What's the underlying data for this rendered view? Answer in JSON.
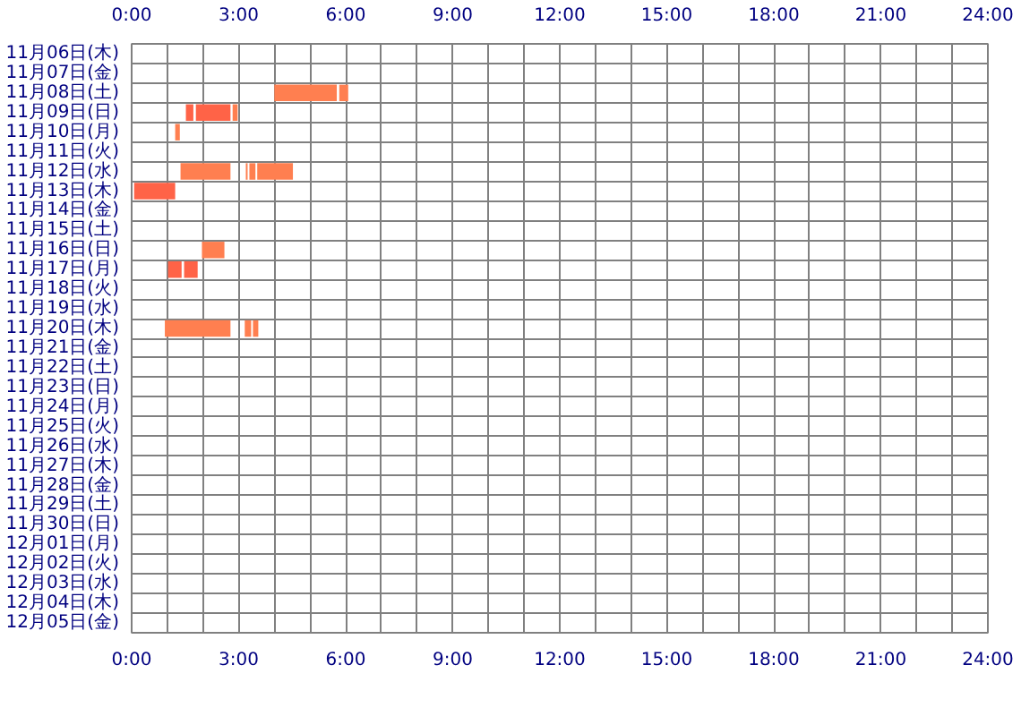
{
  "chart_data": {
    "type": "bar",
    "orientation": "horizontal",
    "categories": [
      "11月06日(木)",
      "11月07日(金)",
      "11月08日(土)",
      "11月09日(日)",
      "11月10日(月)",
      "11月11日(火)",
      "11月12日(水)",
      "11月13日(木)",
      "11月14日(金)",
      "11月15日(土)",
      "11月16日(日)",
      "11月17日(月)",
      "11月18日(火)",
      "11月19日(水)",
      "11月20日(木)",
      "11月21日(金)",
      "11月22日(土)",
      "11月23日(日)",
      "11月24日(月)",
      "11月25日(火)",
      "11月26日(水)",
      "11月27日(木)",
      "11月28日(金)",
      "11月29日(土)",
      "11月30日(日)",
      "12月01日(月)",
      "12月02日(火)",
      "12月03日(水)",
      "12月04日(木)",
      "12月05日(金)"
    ],
    "series": [
      {
        "base": [
          null,
          null,
          4.0,
          1.52,
          1.22,
          null,
          1.37,
          0.07,
          null,
          null,
          1.97,
          1.02,
          null,
          null,
          0.93,
          null,
          null,
          null,
          null,
          null,
          null,
          null,
          null,
          null,
          null,
          null,
          null,
          null,
          null,
          null
        ],
        "values": [
          null,
          null,
          1.75,
          0.21,
          0.13,
          null,
          1.4,
          1.15,
          null,
          null,
          0.63,
          0.38,
          null,
          null,
          1.84,
          null,
          null,
          null,
          null,
          null,
          null,
          null,
          null,
          null,
          null,
          null,
          null,
          null,
          null,
          null
        ],
        "colors": [
          null,
          null,
          "#ff7f50",
          "#ff6347",
          "#ff7f50",
          null,
          "#ff7f50",
          "#ff6347",
          null,
          null,
          "#ff7f50",
          "#ff6347",
          null,
          null,
          "#ff7f50",
          null,
          null,
          null,
          null,
          null,
          null,
          null,
          null,
          null,
          null,
          null,
          null,
          null,
          null,
          null
        ]
      },
      {
        "base": [
          null,
          null,
          5.82,
          1.8,
          null,
          null,
          3.2,
          null,
          null,
          null,
          null,
          1.47,
          null,
          null,
          3.17,
          null,
          null,
          null,
          null,
          null,
          null,
          null,
          null,
          null,
          null,
          null,
          null,
          null,
          null,
          null
        ],
        "values": [
          null,
          null,
          0.25,
          0.97,
          null,
          null,
          0.05,
          null,
          null,
          null,
          null,
          0.38,
          null,
          null,
          0.18,
          null,
          null,
          null,
          null,
          null,
          null,
          null,
          null,
          null,
          null,
          null,
          null,
          null,
          null,
          null
        ],
        "colors": [
          null,
          null,
          "#ff7f50",
          "#ff6347",
          null,
          null,
          "#ff7f50",
          null,
          null,
          null,
          null,
          "#ff6347",
          null,
          null,
          "#ff7f50",
          null,
          null,
          null,
          null,
          null,
          null,
          null,
          null,
          null,
          null,
          null,
          null,
          null,
          null,
          null
        ]
      },
      {
        "base": [
          null,
          null,
          null,
          2.83,
          null,
          null,
          3.3,
          null,
          null,
          null,
          null,
          null,
          null,
          null,
          3.4,
          null,
          null,
          null,
          null,
          null,
          null,
          null,
          null,
          null,
          null,
          null,
          null,
          null,
          null,
          null
        ],
        "values": [
          null,
          null,
          null,
          0.14,
          null,
          null,
          0.17,
          null,
          null,
          null,
          null,
          null,
          null,
          null,
          0.15,
          null,
          null,
          null,
          null,
          null,
          null,
          null,
          null,
          null,
          null,
          null,
          null,
          null,
          null,
          null
        ],
        "color": "#ff7f50"
      },
      {
        "base": [
          null,
          null,
          null,
          null,
          null,
          null,
          3.52,
          null,
          null,
          null,
          null,
          null,
          null,
          null,
          null,
          null,
          null,
          null,
          null,
          null,
          null,
          null,
          null,
          null,
          null,
          null,
          null,
          null,
          null,
          null
        ],
        "values": [
          null,
          null,
          null,
          null,
          null,
          null,
          1.0,
          null,
          null,
          null,
          null,
          null,
          null,
          null,
          null,
          null,
          null,
          null,
          null,
          null,
          null,
          null,
          null,
          null,
          null,
          null,
          null,
          null,
          null,
          null
        ],
        "color": "#ff7f50"
      }
    ],
    "xlim": [
      0,
      24
    ],
    "xticks": [
      {
        "value": 0,
        "label": "0:00"
      },
      {
        "value": 1,
        "label": null
      },
      {
        "value": 2,
        "label": null
      },
      {
        "value": 3,
        "label": "3:00"
      },
      {
        "value": 4,
        "label": null
      },
      {
        "value": 5,
        "label": null
      },
      {
        "value": 6,
        "label": "6:00"
      },
      {
        "value": 7,
        "label": null
      },
      {
        "value": 8,
        "label": null
      },
      {
        "value": 9,
        "label": "9:00"
      },
      {
        "value": 10,
        "label": null
      },
      {
        "value": 11,
        "label": null
      },
      {
        "value": 12,
        "label": "12:00"
      },
      {
        "value": 13,
        "label": null
      },
      {
        "value": 14,
        "label": null
      },
      {
        "value": 15,
        "label": "15:00"
      },
      {
        "value": 16,
        "label": null
      },
      {
        "value": 17,
        "label": null
      },
      {
        "value": 18,
        "label": "18:00"
      },
      {
        "value": 19,
        "label": null
      },
      {
        "value": 20,
        "label": null
      },
      {
        "value": 21,
        "label": "21:00"
      },
      {
        "value": 22,
        "label": null
      },
      {
        "value": 23,
        "label": null
      },
      {
        "value": 24,
        "label": "24:00"
      }
    ],
    "x2lim": [
      0,
      24
    ],
    "x2ticks": [
      {
        "value": 0,
        "label": "0:00"
      },
      {
        "value": 1,
        "label": null
      },
      {
        "value": 2,
        "label": null
      },
      {
        "value": 3,
        "label": "3:00"
      },
      {
        "value": 4,
        "label": null
      },
      {
        "value": 5,
        "label": null
      },
      {
        "value": 6,
        "label": "6:00"
      },
      {
        "value": 7,
        "label": null
      },
      {
        "value": 8,
        "label": null
      },
      {
        "value": 9,
        "label": "9:00"
      },
      {
        "value": 10,
        "label": null
      },
      {
        "value": 11,
        "label": null
      },
      {
        "value": 12,
        "label": "12:00"
      },
      {
        "value": 13,
        "label": null
      },
      {
        "value": 14,
        "label": null
      },
      {
        "value": 15,
        "label": "15:00"
      },
      {
        "value": 16,
        "label": null
      },
      {
        "value": 17,
        "label": null
      },
      {
        "value": 18,
        "label": "18:00"
      },
      {
        "value": 19,
        "label": null
      },
      {
        "value": 20,
        "label": null
      },
      {
        "value": 21,
        "label": "21:00"
      },
      {
        "value": 22,
        "label": null
      },
      {
        "value": 23,
        "label": null
      },
      {
        "value": 24,
        "label": "24:00"
      }
    ],
    "grid": true
  }
}
